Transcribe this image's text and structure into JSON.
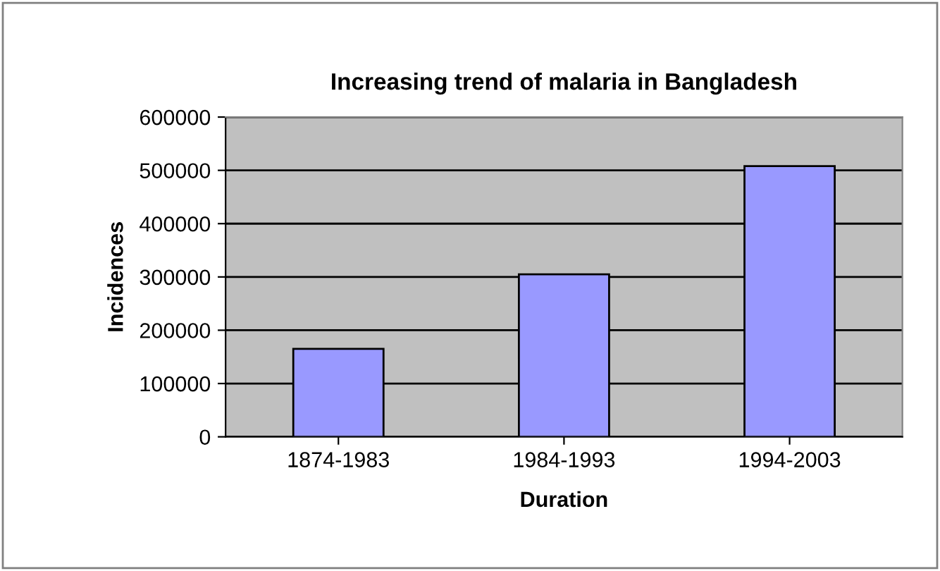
{
  "chart_data": {
    "type": "bar",
    "title": "Increasing trend of malaria in Bangladesh",
    "xlabel": "Duration",
    "ylabel": "Incidences",
    "categories": [
      "1874-1983",
      "1984-1993",
      "1994-2003"
    ],
    "values": [
      165000,
      305000,
      508000
    ],
    "color": "#9999ff",
    "ylim": [
      0,
      600000
    ],
    "yticks": [
      0,
      100000,
      200000,
      300000,
      400000,
      500000,
      600000
    ],
    "grid": "y"
  }
}
